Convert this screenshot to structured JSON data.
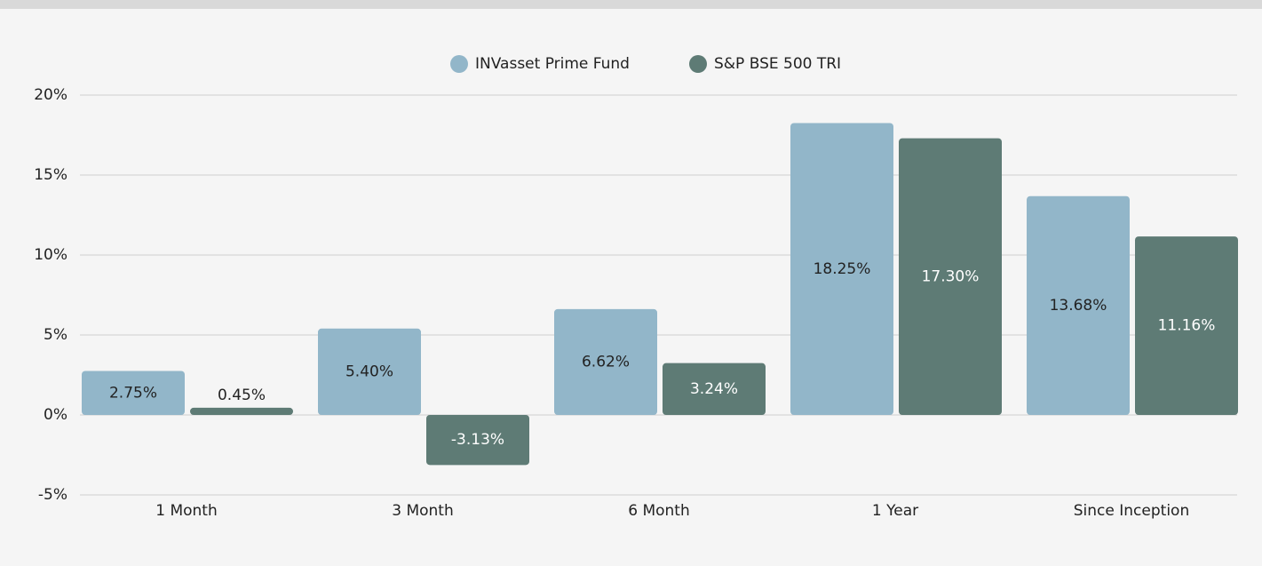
{
  "chart_data": {
    "type": "bar",
    "categories": [
      "1 Month",
      "3 Month",
      "6 Month",
      "1 Year",
      "Since Inception"
    ],
    "series": [
      {
        "name": "INVasset Prime Fund",
        "color": "#92b6c9",
        "values": [
          2.75,
          5.4,
          6.62,
          18.25,
          13.68
        ],
        "value_labels": [
          "2.75%",
          "5.40%",
          "6.62%",
          "18.25%",
          "13.68%"
        ]
      },
      {
        "name": "S&P BSE 500 TRI",
        "color": "#5e7b75",
        "values": [
          0.45,
          -3.13,
          3.24,
          17.3,
          11.16
        ],
        "value_labels": [
          "0.45%",
          "-3.13%",
          "3.24%",
          "17.30%",
          "11.16%"
        ]
      }
    ],
    "ylim": [
      -5,
      20
    ],
    "yticks": [
      {
        "value": -5,
        "label": "-5%"
      },
      {
        "value": 0,
        "label": "0%"
      },
      {
        "value": 5,
        "label": "5%"
      },
      {
        "value": 10,
        "label": "10%"
      },
      {
        "value": 15,
        "label": "15%"
      },
      {
        "value": 20,
        "label": "20%"
      }
    ],
    "grid": true,
    "legend": "top"
  }
}
